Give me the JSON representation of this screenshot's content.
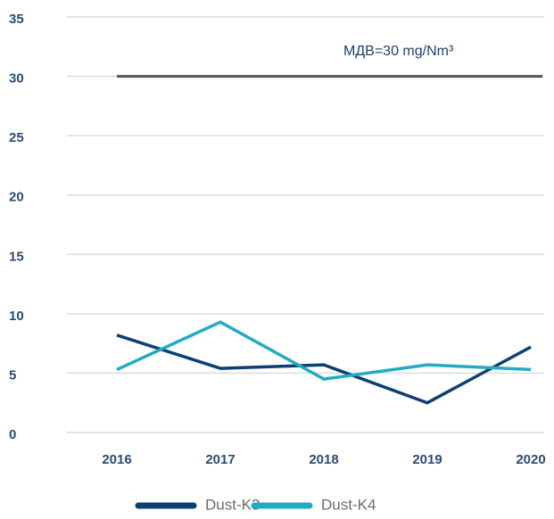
{
  "chart_data": {
    "type": "line",
    "categories": [
      "2016",
      "2017",
      "2018",
      "2019",
      "2020"
    ],
    "series": [
      {
        "name": "Dust-K3",
        "color": "#0d3f73",
        "values": [
          8.2,
          5.4,
          5.7,
          2.5,
          7.2
        ]
      },
      {
        "name": "Dust-K4",
        "color": "#22abc2",
        "values": [
          5.3,
          9.3,
          4.5,
          5.7,
          5.3
        ]
      }
    ],
    "reference_line": {
      "value": 30,
      "label": "МДВ=30 mg/Nm³",
      "color": "#555555"
    },
    "ylim": [
      0,
      35
    ],
    "yticks": [
      0,
      5,
      10,
      15,
      20,
      25,
      30,
      35
    ],
    "grid": true,
    "legend": "bottom"
  }
}
